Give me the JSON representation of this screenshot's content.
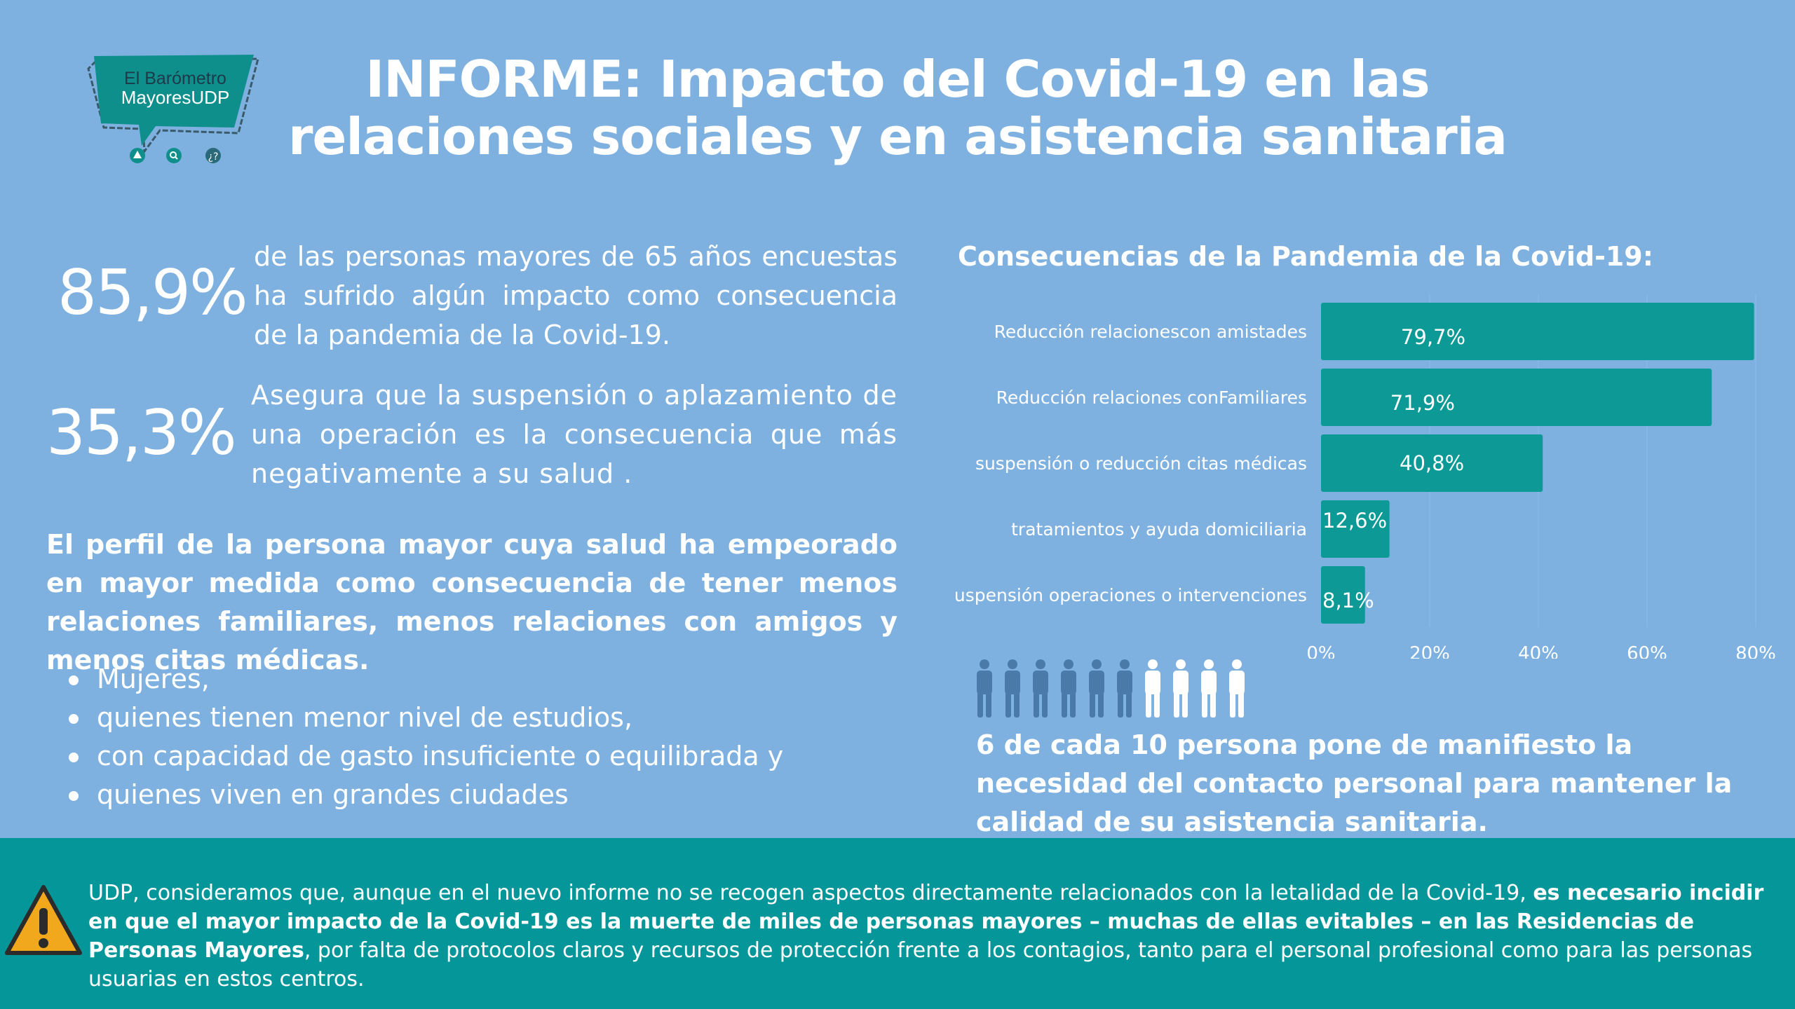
{
  "logo": {
    "line1": "El Barómetro",
    "line2": "MayoresUDP",
    "icons": [
      "tree-icon",
      "search-icon",
      "people-question-icon"
    ],
    "colors": {
      "banner": "#0f8f8c",
      "outline": "#3a5a6a"
    }
  },
  "title": {
    "line1": "INFORME: Impacto del Covid-19 en las",
    "line2": "relaciones sociales y en asistencia sanitaria"
  },
  "stat1": {
    "value": "85,9%",
    "text": "de las personas mayores de 65 años encuestas ha sufrido algún impacto como consecuencia de la pandemia de la Covid-19."
  },
  "stat2": {
    "value": "35,3%",
    "text": "Asegura que la suspensión o aplazamiento de una operación es la consecuencia que más negativamente a su salud ."
  },
  "profile": {
    "text": "El perfil de la persona mayor cuya salud ha empeorado en mayor medida como consecuencia de tener menos relaciones familiares, menos relaciones con amigos y menos citas médicas.",
    "items": [
      "Mujeres,",
      "quienes tienen menor nivel de estudios,",
      "con capacidad de gasto insuficiente o equilibrada y",
      "quienes viven en grandes ciudades"
    ]
  },
  "chart_data": {
    "type": "bar",
    "orientation": "horizontal",
    "title": "Consecuencias de la Pandemia de la Covid-19:",
    "categories": [
      "Reducción relacionescon amistades",
      "Reducción relaciones conFamiliares",
      "suspensión o reducción citas médicas",
      "tratamientos y ayuda domiciliaria",
      "Suspensión operaciones o intervenciones"
    ],
    "values": [
      79.7,
      71.9,
      40.8,
      12.6,
      8.1
    ],
    "value_labels": [
      "79,7%",
      "71,9%",
      "40,8%",
      "12,6%",
      "8,1%"
    ],
    "xlim": [
      0,
      80
    ],
    "xticks": [
      "0%",
      "20%",
      "40%",
      "60%",
      "80%"
    ],
    "grid": true,
    "bar_color": "#0d9a96"
  },
  "people": {
    "total": 10,
    "highlighted": 6,
    "colors": {
      "highlighted": "#4a7aa8",
      "rest": "#ffffff"
    },
    "text": "6 de cada 10 persona pone de manifiesto la necesidad del contacto personal para mantener la calidad de su asistencia sanitaria."
  },
  "footer": {
    "part1": "UDP, consideramos que, aunque en el nuevo informe no se recogen aspectos directamente relacionados con la letalidad de la Covid-19, ",
    "part2_bold": "es necesario incidir en que el mayor impacto de la Covid-19 es la muerte de miles de personas mayores – muchas de ellas evitables – en las Residencias de Personas Mayores",
    "part3": ", por falta de protocolos claros y recursos de protección frente a los contagios, tanto para el personal profesional como para las personas usuarias en estos centros.",
    "icon": "warning-icon",
    "background": "#05969a"
  }
}
